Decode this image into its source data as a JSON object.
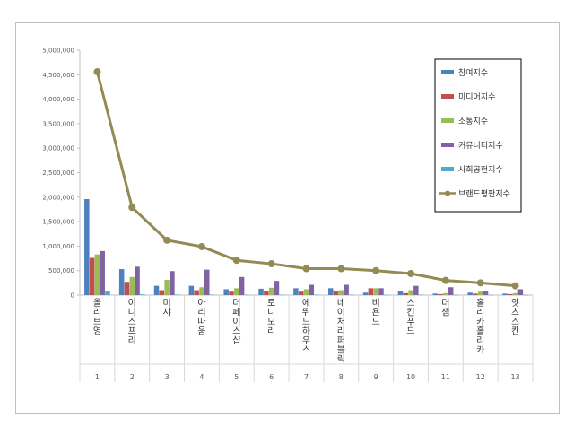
{
  "chart_data": {
    "type": "bar+line",
    "title": "",
    "xlabel": "",
    "ylabel": "",
    "ylim": [
      0,
      5000000
    ],
    "ytick_labels": [
      "0",
      "500,000",
      "1,000,000",
      "1,500,000",
      "2,000,000",
      "2,500,000",
      "3,000,000",
      "3,500,000",
      "4,000,000",
      "4,500,000",
      "5,000,000"
    ],
    "yticks": [
      0,
      500000,
      1000000,
      1500000,
      2000000,
      2500000,
      3000000,
      3500000,
      4000000,
      4500000,
      5000000
    ],
    "grid": false,
    "legend_position": "top-right",
    "categories": [
      "올리브영",
      "이니스프리",
      "미샤",
      "아리따움",
      "더페이스샵",
      "토니모리",
      "에뛰드하우스",
      "네이처리퍼블릭",
      "비욘드",
      "스킨푸드",
      "더샘",
      "홀리카홀리카",
      "잇츠스킨"
    ],
    "index_labels": [
      "1",
      "2",
      "3",
      "4",
      "5",
      "6",
      "7",
      "8",
      "9",
      "10",
      "11",
      "12",
      "13"
    ],
    "series": [
      {
        "name": "참여지수",
        "kind": "bar",
        "color": "#4f81bd",
        "values": [
          1960000,
          530000,
          190000,
          190000,
          120000,
          130000,
          140000,
          140000,
          50000,
          80000,
          30000,
          50000,
          30000
        ]
      },
      {
        "name": "미디어지수",
        "kind": "bar",
        "color": "#c0504d",
        "values": [
          760000,
          270000,
          100000,
          100000,
          70000,
          80000,
          70000,
          80000,
          140000,
          40000,
          20000,
          30000,
          20000
        ]
      },
      {
        "name": "소통지수",
        "kind": "bar",
        "color": "#9bbb59",
        "values": [
          830000,
          370000,
          310000,
          160000,
          140000,
          150000,
          120000,
          100000,
          140000,
          100000,
          40000,
          70000,
          40000
        ]
      },
      {
        "name": "커뮤니티지수",
        "kind": "bar",
        "color": "#8064a2",
        "values": [
          900000,
          580000,
          490000,
          520000,
          370000,
          290000,
          210000,
          210000,
          140000,
          190000,
          160000,
          90000,
          120000
        ]
      },
      {
        "name": "사회공헌지수",
        "kind": "bar",
        "color": "#4bacc6",
        "values": [
          90000,
          15000,
          10000,
          10000,
          8000,
          8000,
          8000,
          8000,
          5000,
          8000,
          5000,
          5000,
          5000
        ]
      },
      {
        "name": "브랜드평판지수",
        "kind": "line",
        "color": "#948a54",
        "values": [
          4560000,
          1790000,
          1120000,
          990000,
          710000,
          640000,
          540000,
          540000,
          500000,
          440000,
          300000,
          250000,
          190000
        ]
      }
    ]
  }
}
